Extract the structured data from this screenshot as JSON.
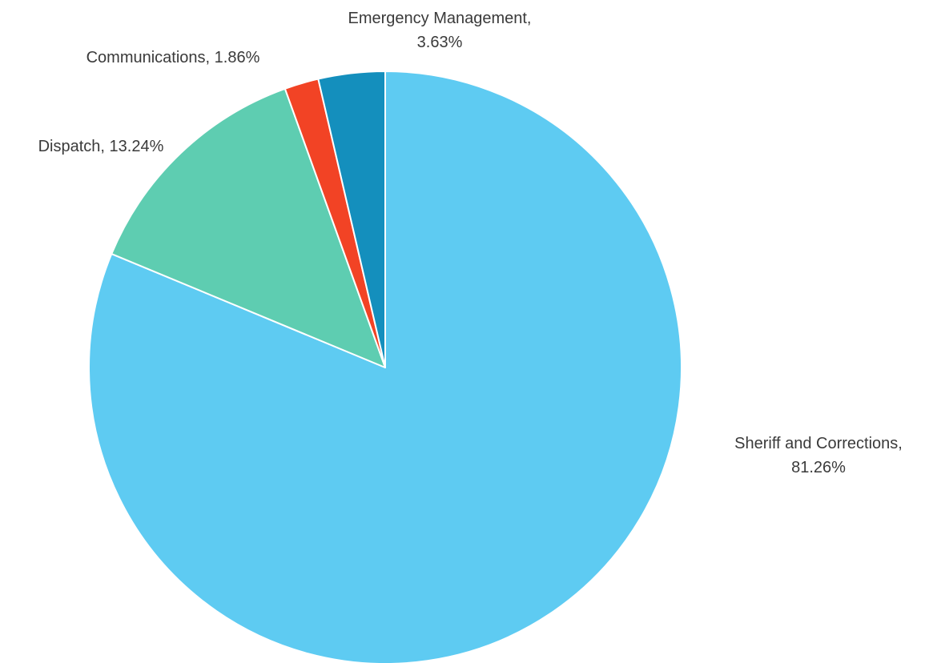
{
  "chart_data": {
    "type": "pie",
    "title": "",
    "start": "12 o'clock",
    "direction": "clockwise",
    "categories": [
      "Sheriff and Corrections",
      "Dispatch",
      "Communications",
      "Emergency Management"
    ],
    "values": [
      81.26,
      13.24,
      1.86,
      3.63
    ],
    "unit": "%",
    "colors": [
      "#5ecbf2",
      "#5ecdb1",
      "#f24325",
      "#148fbd"
    ],
    "labels": [
      {
        "lines": [
          "Sheriff and Corrections,",
          "81.26%"
        ]
      },
      {
        "lines": [
          "Dispatch, 13.24%"
        ]
      },
      {
        "lines": [
          "Communications, 1.86%"
        ]
      },
      {
        "lines": [
          "Emergency Management,",
          "3.63%"
        ]
      }
    ],
    "legend": "none"
  }
}
